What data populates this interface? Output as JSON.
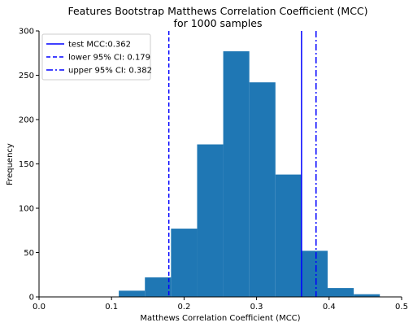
{
  "chart_data": {
    "type": "bar",
    "title": "Features Bootstrap Matthews Correlation Coefficient (MCC)",
    "subtitle": "for 1000 samples",
    "xlabel": "Matthews Correlation Coefficient (MCC)",
    "ylabel": "Frequency",
    "xlim": [
      0.0,
      0.5
    ],
    "ylim": [
      0,
      300
    ],
    "xticks": [
      "0.0",
      "0.1",
      "0.2",
      "0.3",
      "0.4",
      "0.5"
    ],
    "yticks": [
      "0",
      "50",
      "100",
      "150",
      "200",
      "250",
      "300"
    ],
    "grid": false,
    "legend_position": "top-left",
    "bar_color": "#1f77b4",
    "bins": [
      {
        "x0": 0.11,
        "x1": 0.146,
        "count": 7
      },
      {
        "x0": 0.146,
        "x1": 0.182,
        "count": 22
      },
      {
        "x0": 0.182,
        "x1": 0.218,
        "count": 77
      },
      {
        "x0": 0.218,
        "x1": 0.254,
        "count": 172
      },
      {
        "x0": 0.254,
        "x1": 0.29,
        "count": 277
      },
      {
        "x0": 0.29,
        "x1": 0.326,
        "count": 242
      },
      {
        "x0": 0.326,
        "x1": 0.362,
        "count": 138
      },
      {
        "x0": 0.362,
        "x1": 0.398,
        "count": 52
      },
      {
        "x0": 0.398,
        "x1": 0.434,
        "count": 10
      },
      {
        "x0": 0.434,
        "x1": 0.47,
        "count": 3
      }
    ],
    "reference_lines": [
      {
        "name": "test MCC:0.362",
        "x": 0.362,
        "style": "solid",
        "color": "#0000ff"
      },
      {
        "name": "lower 95% CI: 0.179",
        "x": 0.179,
        "style": "dashed",
        "color": "#0000ff"
      },
      {
        "name": "upper 95% CI: 0.382",
        "x": 0.382,
        "style": "dashdot",
        "color": "#0000ff"
      }
    ]
  }
}
